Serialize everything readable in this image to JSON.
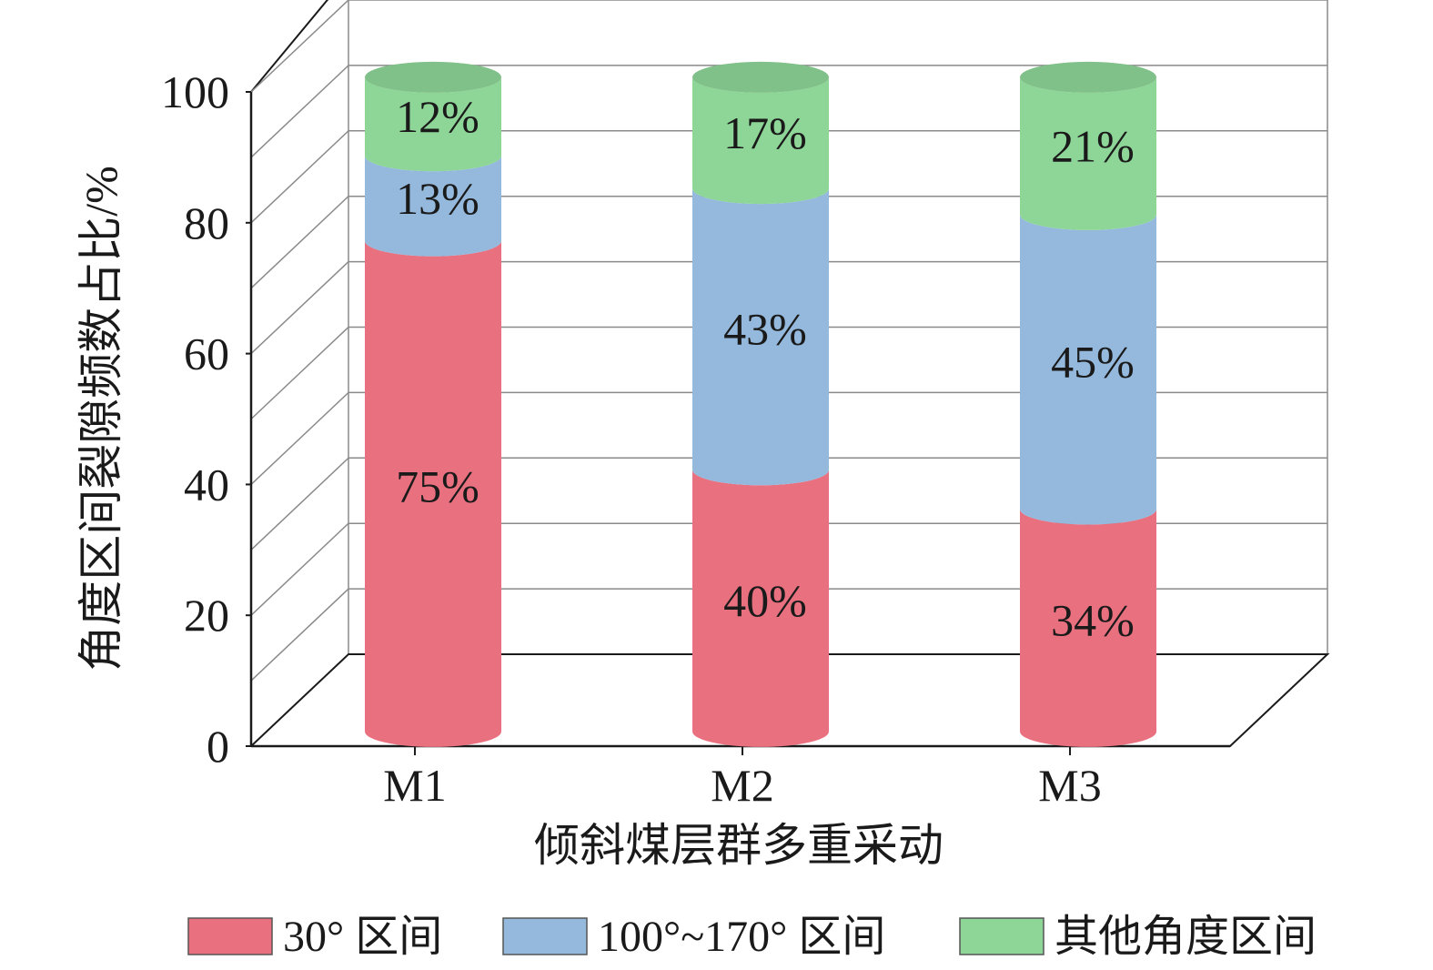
{
  "chart_data": {
    "type": "bar",
    "stacked": true,
    "three_d": true,
    "bar_shape": "cylinder",
    "categories": [
      "M1",
      "M2",
      "M3"
    ],
    "series": [
      {
        "name": "30° 区间",
        "values": [
          75,
          40,
          34
        ],
        "labels": [
          "75%",
          "40%",
          "34%"
        ],
        "color": "#e8707f"
      },
      {
        "name": "100°~170° 区间",
        "values": [
          13,
          43,
          45
        ],
        "labels": [
          "13%",
          "43%",
          "45%"
        ],
        "color": "#94b9dc"
      },
      {
        "name": "其他角度区间",
        "values": [
          12,
          17,
          21
        ],
        "labels": [
          "12%",
          "17%",
          "21%"
        ],
        "color": "#8ed598"
      }
    ],
    "xlabel": "倾斜煤层群多重采动",
    "ylabel": "角度区间裂隙频数占比/%",
    "ylim": [
      0,
      100
    ],
    "yticks": [
      0,
      20,
      40,
      60,
      80,
      100
    ],
    "grid": true,
    "legend": "bottom"
  }
}
